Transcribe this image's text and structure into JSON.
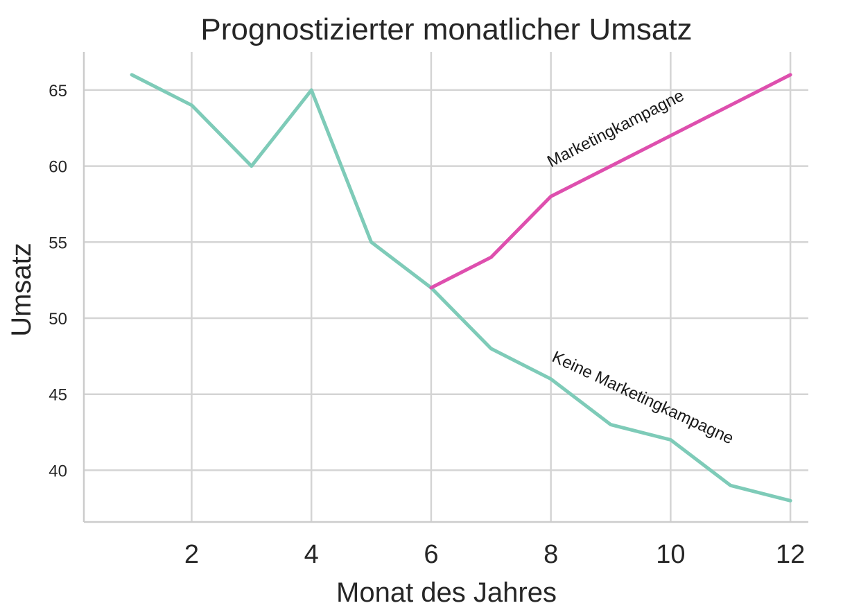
{
  "chart_data": {
    "type": "line",
    "title": "Prognostizierter monatlicher Umsatz",
    "xlabel": "Monat des Jahres",
    "ylabel": "Umsatz",
    "xlim": [
      0.2,
      12.3
    ],
    "ylim": [
      36.6,
      67.5
    ],
    "x_ticks": [
      2,
      4,
      6,
      8,
      10,
      12
    ],
    "y_ticks": [
      40,
      45,
      50,
      55,
      60,
      65
    ],
    "grid": true,
    "legend": "none",
    "series": [
      {
        "name": "Keine Marketingkampagne",
        "color": "#7ecbb8",
        "x": [
          1,
          2,
          3,
          4,
          5,
          6,
          7,
          8,
          9,
          10,
          11,
          12
        ],
        "values": [
          66,
          64,
          60,
          65,
          55,
          52,
          48,
          46,
          43,
          42,
          39,
          38
        ]
      },
      {
        "name": "Marketingkampagne",
        "color": "#de4fae",
        "x": [
          6,
          7,
          8,
          9,
          10,
          11,
          12
        ],
        "values": [
          52,
          54,
          58,
          60,
          62,
          64,
          66
        ]
      }
    ],
    "annotations": [
      {
        "text": "Marketingkampagne",
        "x": 8.0,
        "y": 59.9,
        "angle": -27
      },
      {
        "text": "Keine Marketingkampagne",
        "x": 8.0,
        "y": 47.2,
        "angle": 25
      }
    ]
  }
}
